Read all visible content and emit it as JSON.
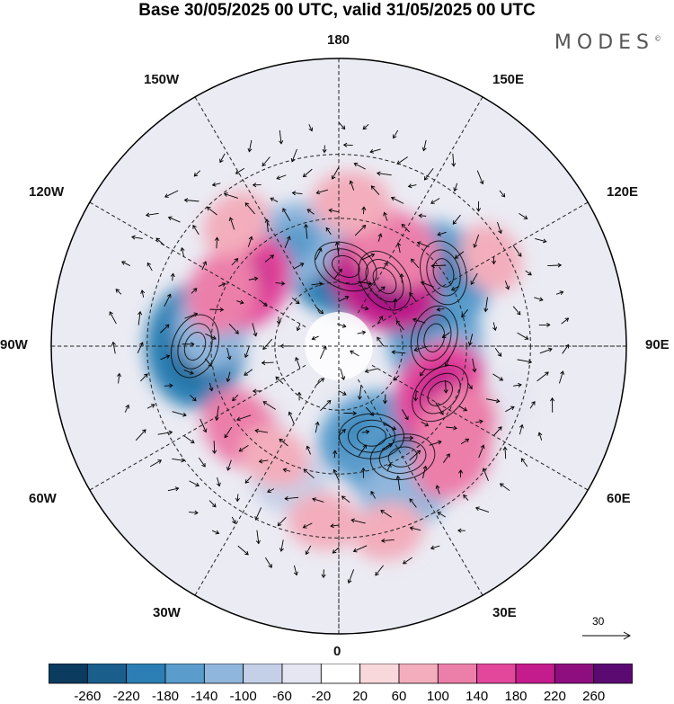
{
  "title": "Base 30/05/2025 00 UTC, valid 31/05/2025 00 UTC",
  "brand": "MODES",
  "brand_mark": "©",
  "longitude_labels": {
    "top": "180",
    "bottom": "0",
    "left": "90W",
    "right": "90E",
    "upper_left": "150W",
    "upper_left2": "120W",
    "upper_right": "150E",
    "upper_right2": "120E",
    "lower_left": "60W",
    "lower_left2": "30W",
    "lower_right": "60E",
    "lower_right2": "30E"
  },
  "reference_vector": {
    "value": "30"
  },
  "colorbar": {
    "labels": [
      "-260",
      "-220",
      "-180",
      "-140",
      "-100",
      "-60",
      "-20",
      "20",
      "60",
      "100",
      "140",
      "180",
      "220",
      "260"
    ],
    "colors": [
      "#0b3b5e",
      "#1a5e8c",
      "#2c7fb4",
      "#5a9ccc",
      "#8fb6dc",
      "#c4d0e8",
      "#e6e6f2",
      "#ffffff",
      "#f9d8dc",
      "#f3adbc",
      "#ec7eaa",
      "#e3479c",
      "#c41c8c",
      "#8e0e80",
      "#5b0a72"
    ]
  },
  "anomaly_blobs": [
    {
      "lat": 65,
      "lon": 175,
      "value": -200
    },
    {
      "lat": 60,
      "lon": 165,
      "value": -100
    },
    {
      "lat": 55,
      "lon": -155,
      "value": -140
    },
    {
      "lat": 50,
      "lon": 125,
      "value": -160
    },
    {
      "lat": 60,
      "lon": 95,
      "value": -180
    },
    {
      "lat": 55,
      "lon": 75,
      "value": -120
    },
    {
      "lat": 45,
      "lon": -90,
      "value": -200
    },
    {
      "lat": 50,
      "lon": -100,
      "value": -120
    },
    {
      "lat": 60,
      "lon": 20,
      "value": -160
    },
    {
      "lat": 50,
      "lon": 30,
      "value": -180
    },
    {
      "lat": 40,
      "lon": 25,
      "value": -120
    },
    {
      "lat": 45,
      "lon": -20,
      "value": -80
    },
    {
      "lat": 55,
      "lon": -45,
      "value": -60
    },
    {
      "lat": 35,
      "lon": 70,
      "value": -60
    },
    {
      "lat": 65,
      "lon": 145,
      "value": 180
    },
    {
      "lat": 55,
      "lon": 150,
      "value": 120
    },
    {
      "lat": 45,
      "lon": 175,
      "value": 80
    },
    {
      "lat": 55,
      "lon": -125,
      "value": 140
    },
    {
      "lat": 50,
      "lon": -115,
      "value": 100
    },
    {
      "lat": 55,
      "lon": 65,
      "value": 160
    },
    {
      "lat": 45,
      "lon": 55,
      "value": 120
    },
    {
      "lat": 40,
      "lon": 45,
      "value": 100
    },
    {
      "lat": 50,
      "lon": -50,
      "value": 100
    },
    {
      "lat": 50,
      "lon": -30,
      "value": 60
    },
    {
      "lat": 30,
      "lon": 15,
      "value": 60
    },
    {
      "lat": 35,
      "lon": -5,
      "value": 60
    },
    {
      "lat": 40,
      "lon": -140,
      "value": 60
    },
    {
      "lat": 35,
      "lon": 120,
      "value": 60
    }
  ]
}
